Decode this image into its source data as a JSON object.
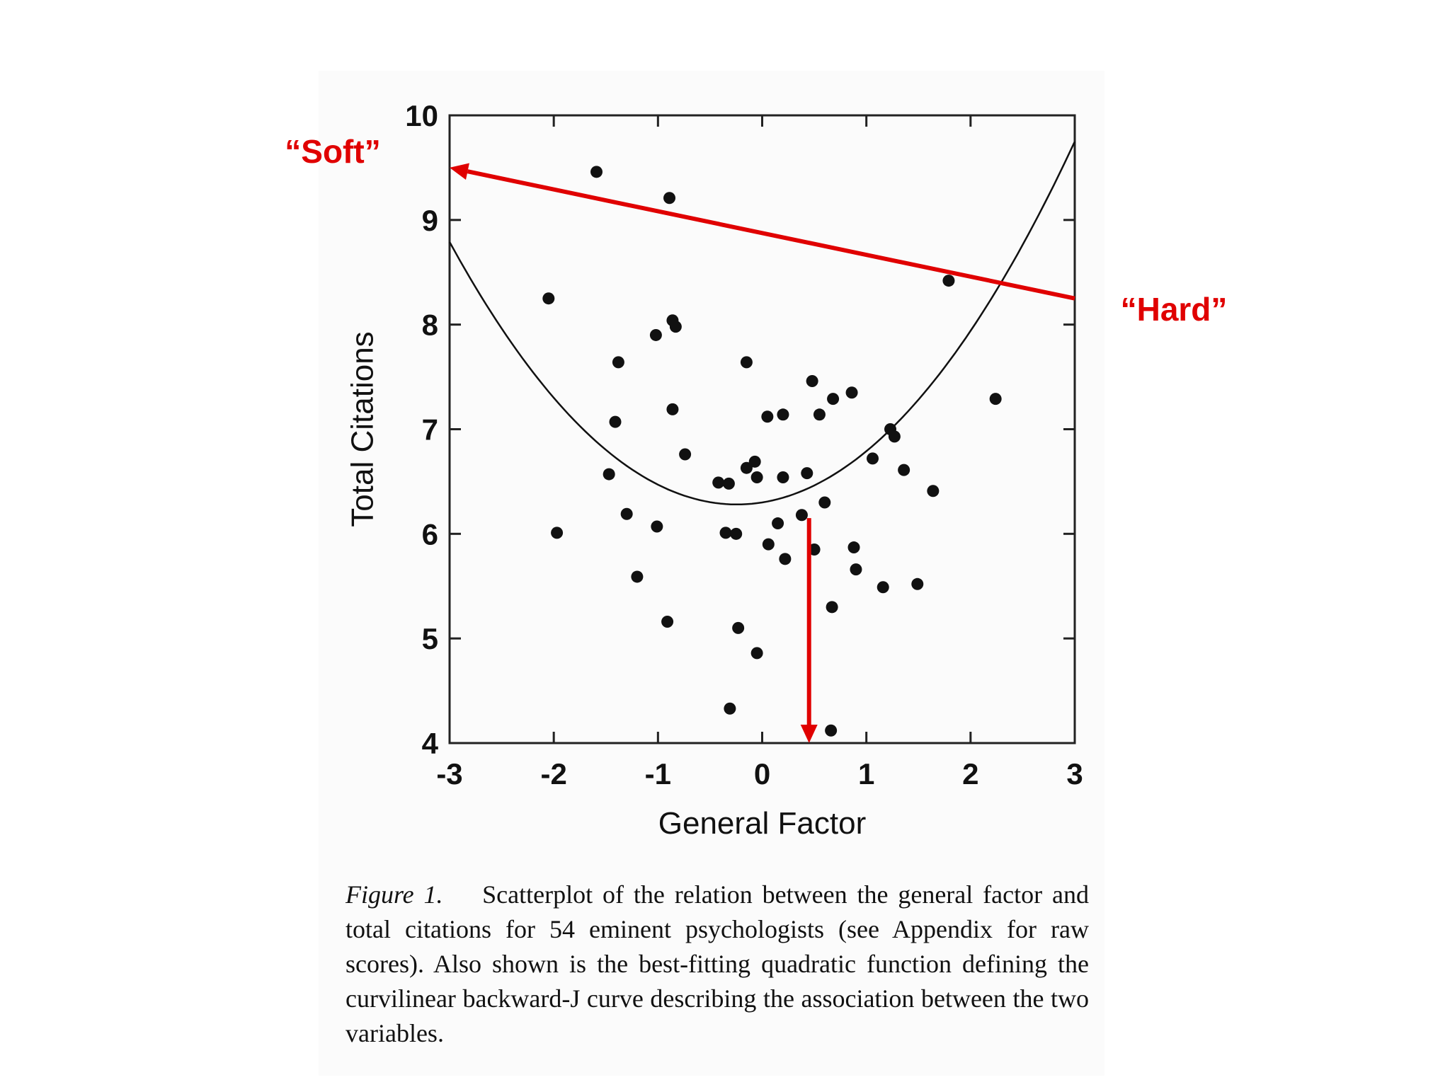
{
  "chart_data": {
    "type": "scatter",
    "xlabel": "General Factor",
    "ylabel": "Total Citations",
    "xlim": [
      -3,
      3
    ],
    "ylim": [
      4,
      10
    ],
    "xticks": [
      "-3",
      "-2",
      "-1",
      "0",
      "1",
      "2",
      "3"
    ],
    "yticks": [
      "4",
      "5",
      "6",
      "7",
      "8",
      "9",
      "10"
    ],
    "grid": false,
    "points": [
      [
        -1.59,
        9.46
      ],
      [
        -0.89,
        9.21
      ],
      [
        -2.05,
        8.25
      ],
      [
        -0.86,
        8.04
      ],
      [
        -0.83,
        7.98
      ],
      [
        -1.02,
        7.9
      ],
      [
        -1.38,
        7.64
      ],
      [
        -0.15,
        7.64
      ],
      [
        0.48,
        7.46
      ],
      [
        0.86,
        7.35
      ],
      [
        0.68,
        7.29
      ],
      [
        -0.86,
        7.19
      ],
      [
        0.2,
        7.14
      ],
      [
        0.05,
        7.12
      ],
      [
        0.55,
        7.14
      ],
      [
        -1.41,
        7.07
      ],
      [
        1.23,
        7.0
      ],
      [
        1.27,
        6.93
      ],
      [
        -0.74,
        6.76
      ],
      [
        1.06,
        6.72
      ],
      [
        -0.07,
        6.69
      ],
      [
        -0.15,
        6.63
      ],
      [
        -1.47,
        6.57
      ],
      [
        1.36,
        6.61
      ],
      [
        0.43,
        6.58
      ],
      [
        -0.05,
        6.54
      ],
      [
        0.2,
        6.54
      ],
      [
        -0.42,
        6.49
      ],
      [
        -0.32,
        6.48
      ],
      [
        1.64,
        6.41
      ],
      [
        0.6,
        6.3
      ],
      [
        0.38,
        6.18
      ],
      [
        -1.3,
        6.19
      ],
      [
        0.15,
        6.1
      ],
      [
        -1.97,
        6.01
      ],
      [
        -1.01,
        6.07
      ],
      [
        -0.35,
        6.01
      ],
      [
        -0.25,
        6.0
      ],
      [
        0.06,
        5.9
      ],
      [
        0.88,
        5.87
      ],
      [
        0.5,
        5.85
      ],
      [
        0.22,
        5.76
      ],
      [
        0.9,
        5.66
      ],
      [
        -1.2,
        5.59
      ],
      [
        1.49,
        5.52
      ],
      [
        1.16,
        5.49
      ],
      [
        0.67,
        5.3
      ],
      [
        -0.91,
        5.16
      ],
      [
        -0.23,
        5.1
      ],
      [
        -0.05,
        4.86
      ],
      [
        -0.31,
        4.33
      ],
      [
        0.66,
        4.12
      ],
      [
        1.79,
        8.42
      ],
      [
        2.24,
        7.29
      ]
    ],
    "fit_curve": {
      "type": "quadratic",
      "coefficients": [
        6.3,
        0.16,
        0.33
      ],
      "label": "best-fitting quadratic"
    },
    "annotations": [
      {
        "text": "“Soft”",
        "color": "#e00000"
      },
      {
        "text": "“Hard”",
        "color": "#e00000"
      }
    ],
    "annotation_arrows": [
      {
        "from": [
          3,
          8.25
        ],
        "to": [
          -3,
          9.5
        ],
        "color": "#e00000"
      },
      {
        "from": [
          0.45,
          6.15
        ],
        "to": [
          0.45,
          4.0
        ],
        "color": "#e00000"
      }
    ]
  },
  "caption": {
    "figure_label": "Figure 1.",
    "text": "Scatterplot of the relation between the general factor and total citations for 54 eminent psychologists (see Appendix for raw scores). Also shown is the best-fitting quadratic function defining the curvilinear backward-J curve describing the association between the two variables."
  },
  "colors": {
    "annotation": "#e00000",
    "ink": "#111111",
    "figure_bg": "#fbfbfb"
  }
}
